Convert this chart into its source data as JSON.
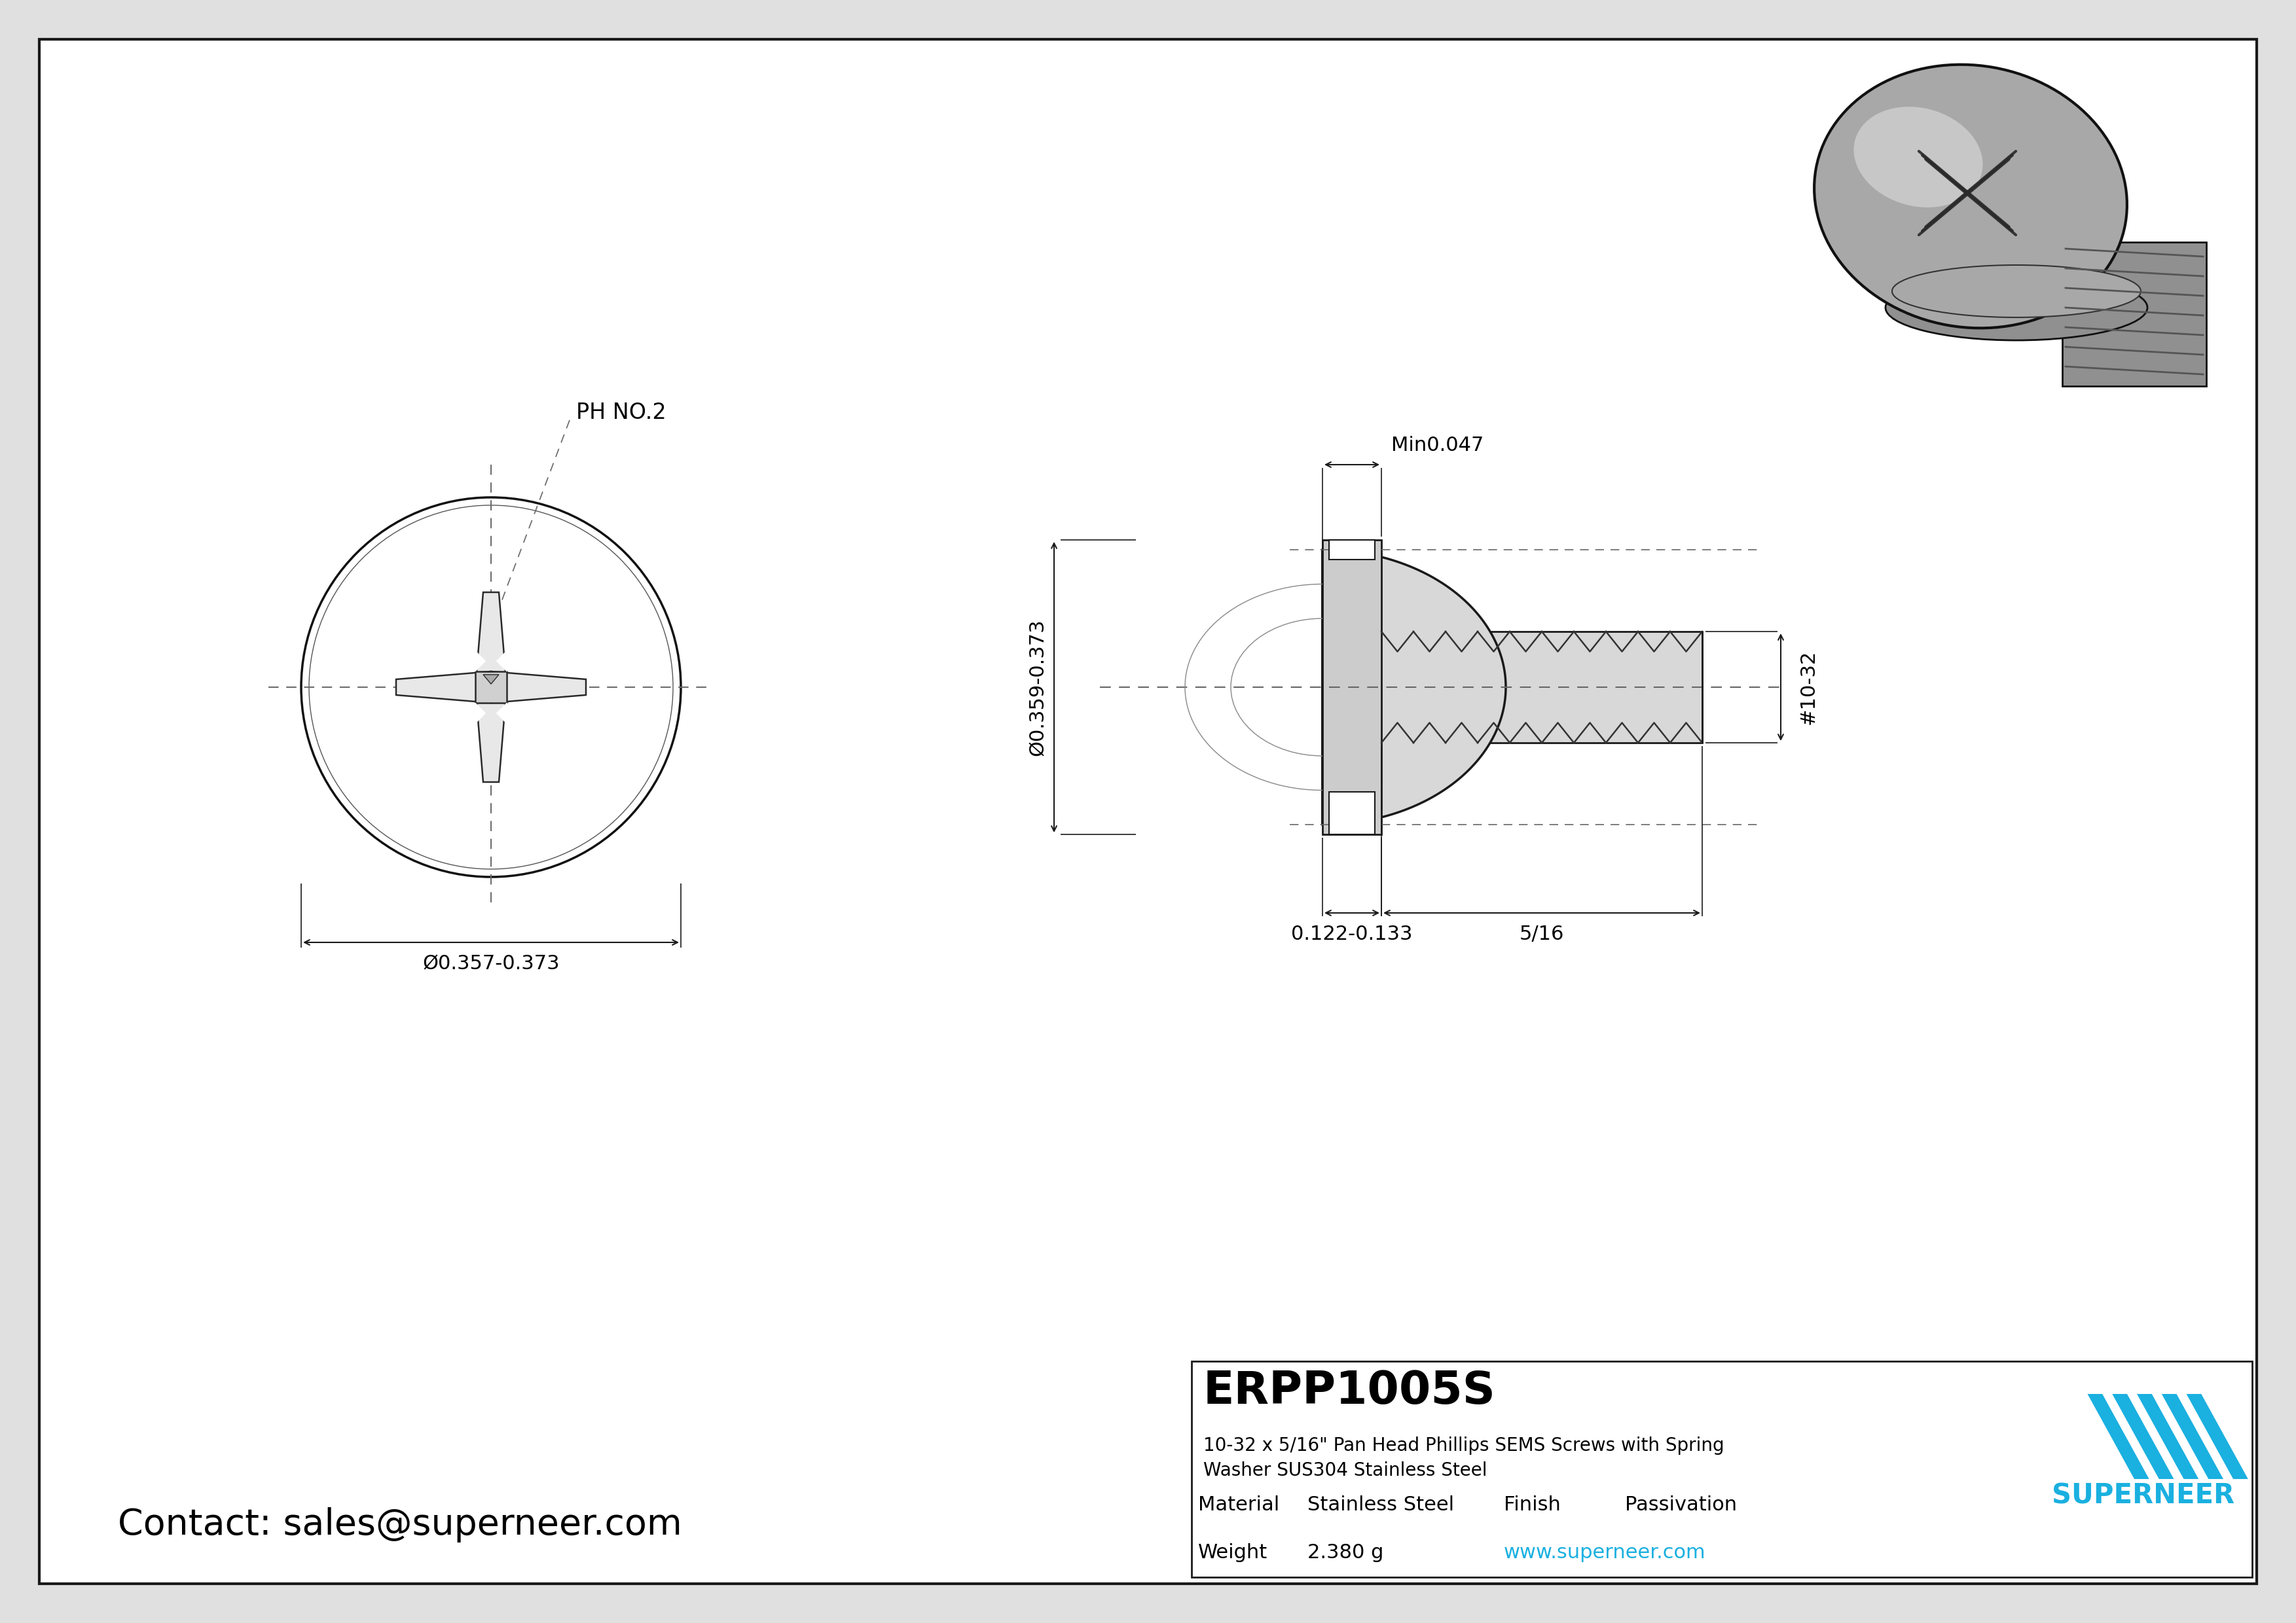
{
  "bg_color": "#e0e0e0",
  "inner_bg": "#ffffff",
  "border_color": "#1a1a1a",
  "line_color": "#1a1a1a",
  "gray_fill": "#c8c8c8",
  "light_gray": "#d8d8d8",
  "part_number": "ERPP1005S",
  "desc1": "10-32 x 5/16\" Pan Head Phillips SEMS Screws with Spring",
  "desc2": "Washer SUS304 Stainless Steel",
  "material_label": "Material",
  "material_value": "Stainless Steel",
  "finish_label": "Finish",
  "finish_value": "Passivation",
  "weight_label": "Weight",
  "weight_value": "2.380 g",
  "website": "www.superneer.com",
  "superneer_color": "#1ab0e0",
  "superneer_text": "SUPERNEER",
  "contact_text": "Contact: sales@superneer.com",
  "dim_head_dia": "Ø0.357-0.373",
  "dim_od": "Ø0.359-0.373",
  "dim_thread": "#10-32",
  "dim_length": "5/16",
  "dim_washer": "0.122-0.133",
  "dim_min": "Min0.047",
  "ph_label": "PH NO.2"
}
